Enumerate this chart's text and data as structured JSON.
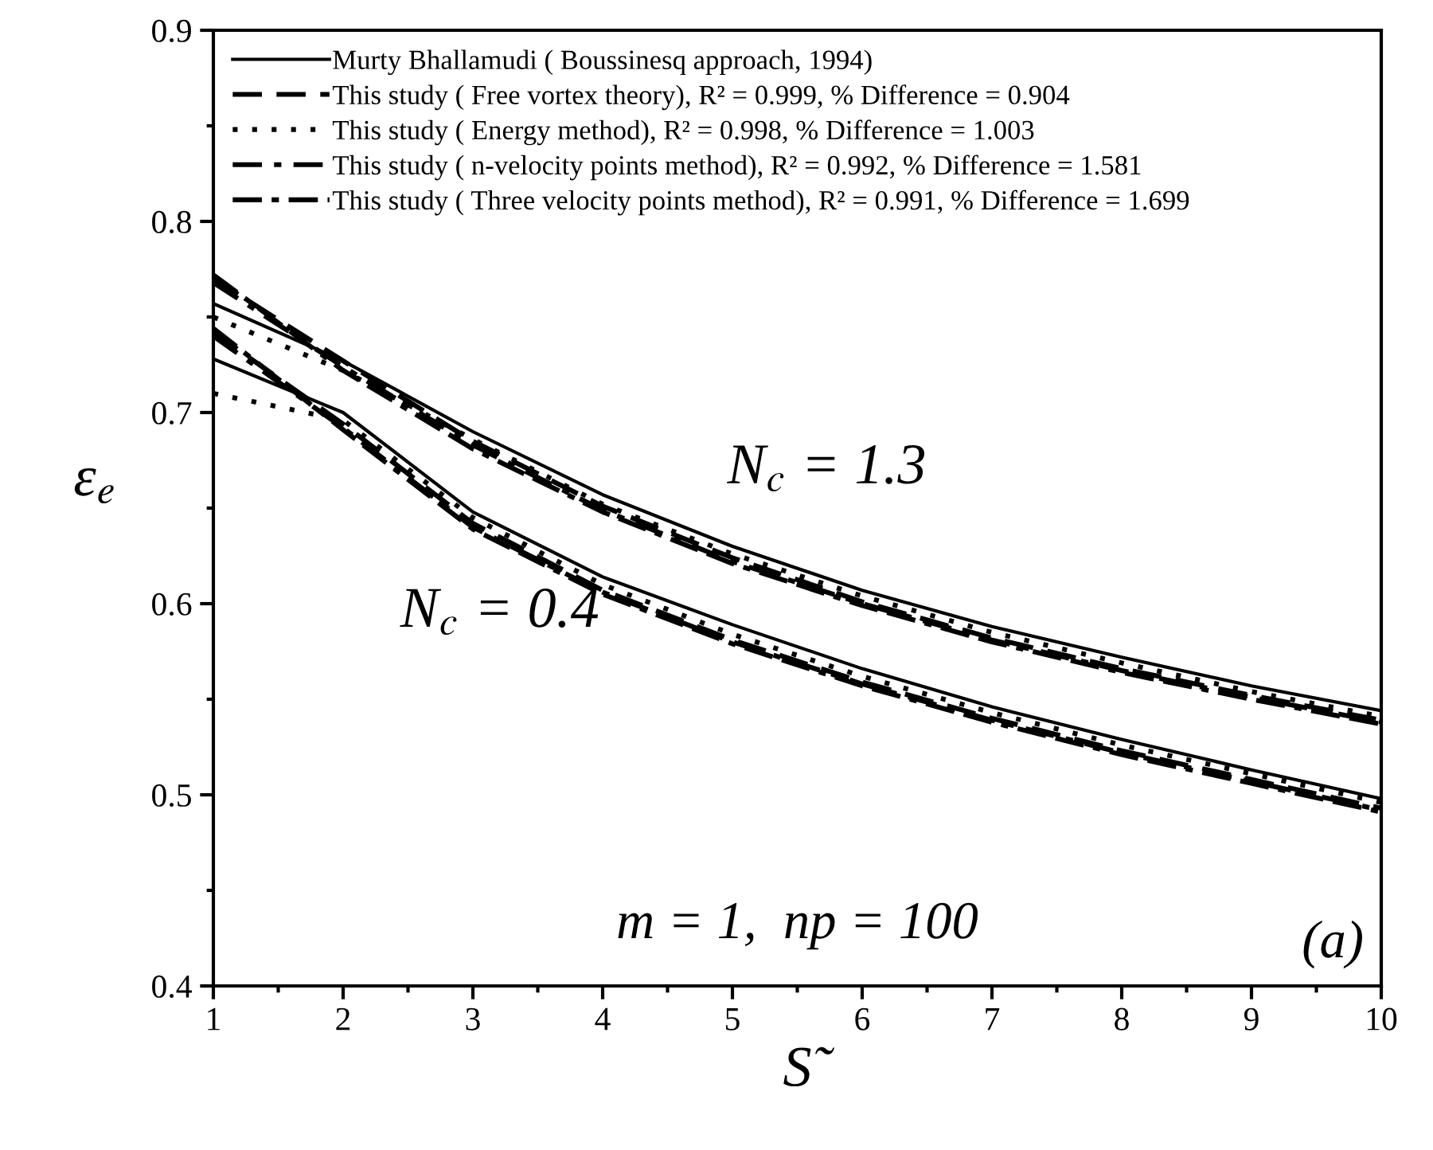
{
  "chart_data": {
    "type": "line",
    "xlabel": "S̃",
    "ylabel": "ε$_{e}$",
    "x": [
      1,
      2,
      3,
      4,
      5,
      6,
      7,
      8,
      9,
      10
    ],
    "xlim": [
      1,
      10
    ],
    "xticks": [
      1,
      2,
      3,
      4,
      5,
      6,
      7,
      8,
      9,
      10
    ],
    "ylim": [
      0.4,
      0.9
    ],
    "yticks": [
      0.4,
      0.5,
      0.6,
      0.7,
      0.8,
      0.9
    ],
    "grid": false,
    "legend": "top left",
    "marker": "none",
    "series": [
      {
        "name": "Murty Bhallamudi ( Boussinesq approach, 1994)",
        "color": "#000000",
        "line_style": "solid",
        "values": [
          0.757,
          0.727,
          0.69,
          0.657,
          0.63,
          0.607,
          0.588,
          0.572,
          0.557,
          0.544
        ]
      },
      {
        "name": "This study ( Free vortex theory), R² = 0.999, % Difference = 0.904",
        "color": "#000000",
        "line_style": "dashed",
        "values": [
          0.77,
          0.727,
          0.685,
          0.651,
          0.624,
          0.601,
          0.582,
          0.566,
          0.552,
          0.539
        ]
      },
      {
        "name": "This study ( Energy method), R² = 0.998, % Difference = 1.003",
        "color": "#000000",
        "line_style": "dotted",
        "values": [
          0.75,
          0.722,
          0.686,
          0.652,
          0.626,
          0.604,
          0.585,
          0.569,
          0.554,
          0.541
        ]
      },
      {
        "name": "This study ( n-velocity points method), R² = 0.992, % Difference = 1.581",
        "color": "#000000",
        "line_style": "dashdot",
        "values": [
          0.768,
          0.724,
          0.683,
          0.649,
          0.622,
          0.6,
          0.581,
          0.565,
          0.551,
          0.538
        ]
      },
      {
        "name": "This study ( Three velocity points method), R² = 0.991, % Difference = 1.699",
        "color": "#000000",
        "line_style": "dashdotdash",
        "values": [
          0.772,
          0.722,
          0.681,
          0.648,
          0.621,
          0.599,
          0.58,
          0.564,
          0.55,
          0.537
        ]
      },
      {
        "color": "#000000",
        "line_style": "solid",
        "values": [
          0.728,
          0.7,
          0.648,
          0.614,
          0.589,
          0.566,
          0.546,
          0.529,
          0.513,
          0.498
        ]
      },
      {
        "color": "#000000",
        "line_style": "dashed",
        "values": [
          0.742,
          0.694,
          0.642,
          0.607,
          0.581,
          0.559,
          0.54,
          0.523,
          0.508,
          0.493
        ]
      },
      {
        "color": "#000000",
        "line_style": "dotted",
        "values": [
          0.71,
          0.696,
          0.645,
          0.61,
          0.584,
          0.562,
          0.543,
          0.526,
          0.511,
          0.496
        ]
      },
      {
        "color": "#000000",
        "line_style": "dashdot",
        "values": [
          0.74,
          0.692,
          0.64,
          0.606,
          0.58,
          0.558,
          0.539,
          0.522,
          0.507,
          0.492
        ]
      },
      {
        "color": "#000000",
        "line_style": "dashdotdash",
        "values": [
          0.744,
          0.691,
          0.639,
          0.605,
          0.579,
          0.557,
          0.538,
          0.521,
          0.506,
          0.491
        ]
      }
    ],
    "annotations": [
      "N$_{c}$ = 1.3",
      "N$_{c}$ = 0.4",
      "m = 1,  np = 100",
      "(a)"
    ]
  }
}
